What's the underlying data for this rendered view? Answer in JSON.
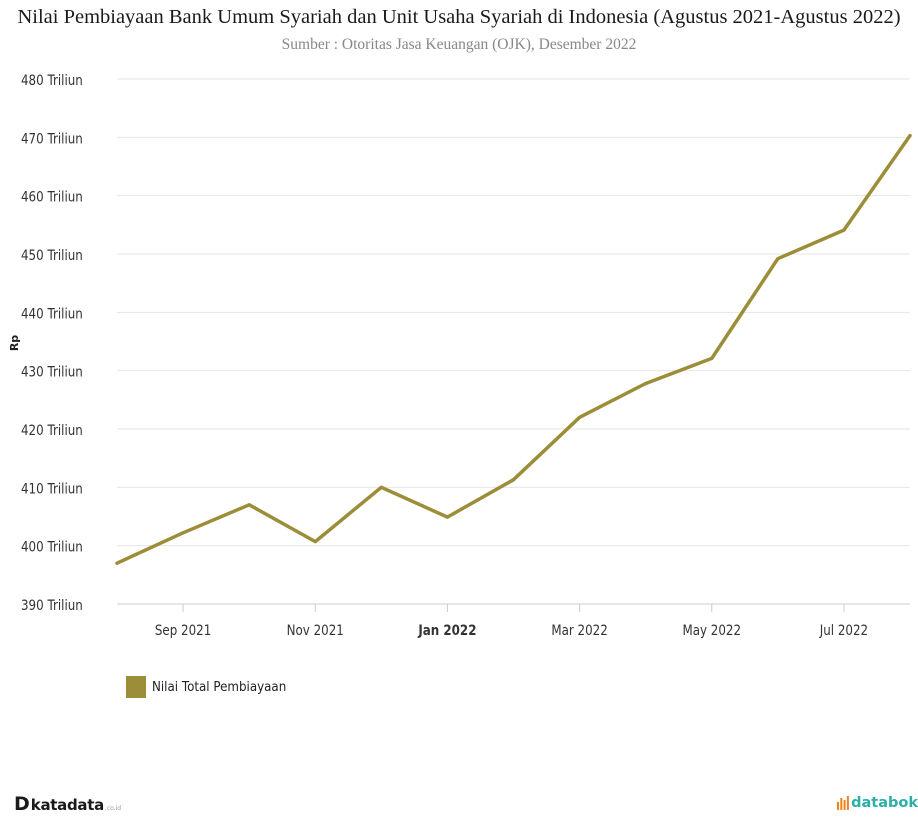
{
  "chart_data": {
    "type": "line",
    "title": "Nilai Pembiayaan Bank Umum Syariah dan Unit Usaha Syariah di Indonesia (Agustus 2021-Agustus 2022)",
    "subtitle": "Sumber : Otoritas Jasa Keuangan (OJK), Desember 2022",
    "ylabel": "Rp",
    "xlabel": "",
    "ylim": [
      390,
      480
    ],
    "yticks": [
      390,
      400,
      410,
      420,
      430,
      440,
      450,
      460,
      470,
      480
    ],
    "ytick_labels": [
      "390 Triliun",
      "400 Triliun",
      "410 Triliun",
      "420 Triliun",
      "430 Triliun",
      "440 Triliun",
      "450 Triliun",
      "460 Triliun",
      "470 Triliun",
      "480 Triliun"
    ],
    "x": [
      "Aug 2021",
      "Sep 2021",
      "Oct 2021",
      "Nov 2021",
      "Dec 2021",
      "Jan 2022",
      "Feb 2022",
      "Mar 2022",
      "Apr 2022",
      "May 2022",
      "Jun 2022",
      "Jul 2022",
      "Aug 2022"
    ],
    "xtick_labels": [
      {
        "label": "Sep 2021",
        "index": 1,
        "bold": false
      },
      {
        "label": "Nov 2021",
        "index": 3,
        "bold": false
      },
      {
        "label": "Jan 2022",
        "index": 5,
        "bold": true
      },
      {
        "label": "Mar 2022",
        "index": 7,
        "bold": false
      },
      {
        "label": "May 2022",
        "index": 9,
        "bold": false
      },
      {
        "label": "Jul 2022",
        "index": 11,
        "bold": false
      }
    ],
    "series": [
      {
        "name": "Nilai Total Pembiayaan",
        "color": "#9c8d38",
        "values": [
          397.0,
          402.2,
          407.0,
          400.7,
          410.0,
          404.9,
          411.3,
          422.0,
          427.8,
          432.1,
          449.2,
          454.1,
          470.3
        ]
      }
    ],
    "grid": true,
    "legend_position": "bottom-left"
  },
  "branding": {
    "left_logo_mark": "D",
    "left_logo": "katadata",
    "left_logo_suffix": ".co.id",
    "right_logo": "databok"
  },
  "colors": {
    "series": "#9c8d38",
    "grid": "#e6e6e6",
    "axis_text": "#333333",
    "brand_teal": "#2ab0a6",
    "brand_orange": "#f0821e"
  }
}
